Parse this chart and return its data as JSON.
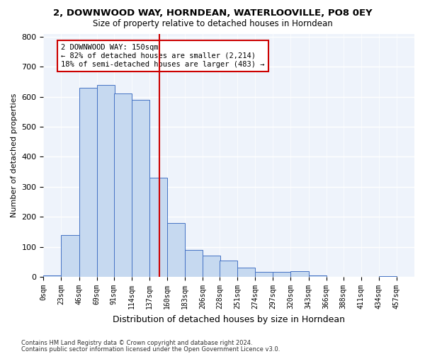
{
  "title1": "2, DOWNWOOD WAY, HORNDEAN, WATERLOOVILLE, PO8 0EY",
  "title2": "Size of property relative to detached houses in Horndean",
  "xlabel": "Distribution of detached houses by size in Horndean",
  "ylabel": "Number of detached properties",
  "bar_bins": [
    0,
    23,
    46,
    69,
    91,
    114,
    137,
    160,
    183,
    206,
    228,
    251,
    274,
    297,
    320,
    343,
    366,
    388,
    411,
    434
  ],
  "bar_heights": [
    5,
    140,
    630,
    640,
    610,
    590,
    330,
    180,
    90,
    70,
    55,
    30,
    16,
    16,
    20,
    5,
    0,
    0,
    0,
    3
  ],
  "bar_labels": [
    "0sqm",
    "23sqm",
    "46sqm",
    "69sqm",
    "91sqm",
    "114sqm",
    "137sqm",
    "160sqm",
    "183sqm",
    "206sqm",
    "228sqm",
    "251sqm",
    "274sqm",
    "297sqm",
    "320sqm",
    "343sqm",
    "366sqm",
    "388sqm",
    "411sqm",
    "434sqm",
    "457sqm"
  ],
  "bar_color": "#c6d9f0",
  "bar_edge_color": "#4472c4",
  "background_color": "#eef3fb",
  "grid_color": "#ffffff",
  "ref_line_x": 150,
  "ref_line_color": "#cc0000",
  "ylim": [
    0,
    810
  ],
  "yticks": [
    0,
    100,
    200,
    300,
    400,
    500,
    600,
    700,
    800
  ],
  "annotation_text": "2 DOWNWOOD WAY: 150sqm\n← 82% of detached houses are smaller (2,214)\n18% of semi-detached houses are larger (483) →",
  "annotation_box_color": "#ffffff",
  "annotation_border_color": "#cc0000",
  "footer_line1": "Contains HM Land Registry data © Crown copyright and database right 2024.",
  "footer_line2": "Contains public sector information licensed under the Open Government Licence v3.0.",
  "bin_width": 23,
  "xlim": [
    0,
    480
  ],
  "tick_positions": [
    0,
    23,
    46,
    69,
    91,
    114,
    137,
    160,
    183,
    206,
    228,
    251,
    274,
    297,
    320,
    343,
    366,
    388,
    411,
    434,
    457
  ]
}
